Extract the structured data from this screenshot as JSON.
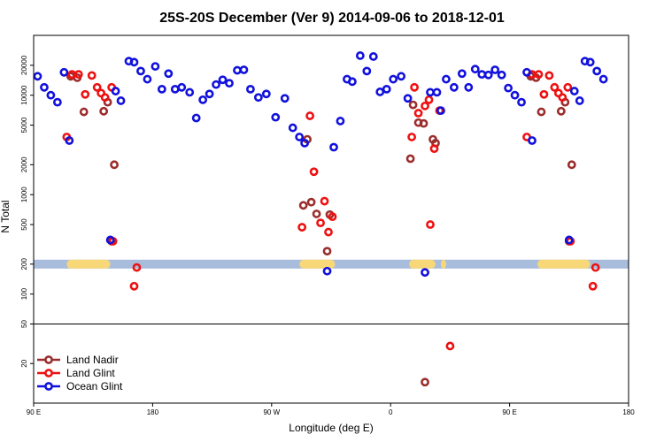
{
  "chart_data": {
    "type": "scatter",
    "title": "25S-20S December (Ver 9)   2014-09-06 to 2018-12-01",
    "xlabel": "Longitude (deg E)",
    "ylabel": "N Total",
    "x_ticks": [
      {
        "value": 90,
        "label": "90 E"
      },
      {
        "value": 180,
        "label": "180"
      },
      {
        "value": 270,
        "label": "90 W"
      },
      {
        "value": 360,
        "label": "0"
      },
      {
        "value": 450,
        "label": "90 E"
      },
      {
        "value": 540,
        "label": "180"
      }
    ],
    "xlim": [
      90,
      540
    ],
    "y_scale": "log",
    "ylim": [
      8,
      40000
    ],
    "y_ticks": [
      20,
      50,
      100,
      200,
      500,
      1000,
      2000,
      5000,
      10000,
      20000
    ],
    "threshold_line": 50,
    "colors": {
      "land_nadir": "#9b2d2d",
      "land_glint": "#ee1111",
      "ocean_glint": "#1111dd",
      "ocean_band": "#a8bcdc",
      "land_band": "#f7d778"
    },
    "surface_band": {
      "y": 200,
      "land_segments": [
        [
          115,
          148
        ],
        [
          291,
          318
        ],
        [
          374,
          394
        ],
        [
          398,
          402
        ],
        [
          471,
          511
        ]
      ]
    },
    "series": [
      {
        "name": "Land Nadir",
        "color_key": "land_nadir",
        "points": [
          [
            118,
            15500
          ],
          [
            123,
            15000
          ],
          [
            128,
            6800
          ],
          [
            143,
            6900
          ],
          [
            146,
            8500
          ],
          [
            151,
            2000
          ],
          [
            149,
            340
          ],
          [
            294,
            780
          ],
          [
            297,
            3600
          ],
          [
            300,
            840
          ],
          [
            304,
            640
          ],
          [
            312,
            270
          ],
          [
            314,
            630
          ],
          [
            375,
            2300
          ],
          [
            377,
            8000
          ],
          [
            381,
            5300
          ],
          [
            385,
            5200
          ],
          [
            392,
            3600
          ],
          [
            394,
            3300
          ],
          [
            466,
            15500
          ],
          [
            470,
            15000
          ],
          [
            474,
            6800
          ],
          [
            489,
            6900
          ],
          [
            492,
            8500
          ],
          [
            497,
            2000
          ],
          [
            495,
            340
          ],
          [
            386,
            13
          ]
        ]
      },
      {
        "name": "Land Glint",
        "color_key": "land_glint",
        "points": [
          [
            115,
            3800
          ],
          [
            119,
            16200
          ],
          [
            124,
            16200
          ],
          [
            129,
            10200
          ],
          [
            134,
            15800
          ],
          [
            138,
            12000
          ],
          [
            141,
            10500
          ],
          [
            144,
            9500
          ],
          [
            149,
            12000
          ],
          [
            150,
            340
          ],
          [
            166,
            120
          ],
          [
            168,
            185
          ],
          [
            293,
            470
          ],
          [
            299,
            6200
          ],
          [
            302,
            1700
          ],
          [
            307,
            520
          ],
          [
            310,
            860
          ],
          [
            313,
            420
          ],
          [
            316,
            600
          ],
          [
            376,
            3800
          ],
          [
            378,
            12000
          ],
          [
            381,
            6600
          ],
          [
            386,
            7800
          ],
          [
            389,
            9000
          ],
          [
            390,
            500
          ],
          [
            393,
            2900
          ],
          [
            397,
            7000
          ],
          [
            463,
            3800
          ],
          [
            467,
            16200
          ],
          [
            472,
            16200
          ],
          [
            476,
            10200
          ],
          [
            480,
            15800
          ],
          [
            484,
            12000
          ],
          [
            487,
            10500
          ],
          [
            490,
            9500
          ],
          [
            494,
            12000
          ],
          [
            496,
            340
          ],
          [
            513,
            120
          ],
          [
            515,
            185
          ],
          [
            405,
            30
          ]
        ]
      },
      {
        "name": "Ocean Glint",
        "color_key": "ocean_glint",
        "points": [
          [
            93,
            15500
          ],
          [
            98,
            12000
          ],
          [
            103,
            10000
          ],
          [
            108,
            8500
          ],
          [
            113,
            17000
          ],
          [
            117,
            3500
          ],
          [
            148,
            350
          ],
          [
            152,
            11000
          ],
          [
            156,
            8800
          ],
          [
            162,
            22000
          ],
          [
            166,
            21500
          ],
          [
            171,
            17500
          ],
          [
            176,
            14500
          ],
          [
            182,
            19500
          ],
          [
            187,
            11500
          ],
          [
            192,
            16500
          ],
          [
            197,
            11500
          ],
          [
            202,
            12000
          ],
          [
            208,
            10700
          ],
          [
            213,
            5900
          ],
          [
            218,
            9000
          ],
          [
            223,
            10300
          ],
          [
            228,
            12800
          ],
          [
            233,
            14300
          ],
          [
            238,
            13200
          ],
          [
            244,
            17800
          ],
          [
            249,
            18000
          ],
          [
            254,
            11500
          ],
          [
            260,
            9500
          ],
          [
            266,
            10300
          ],
          [
            273,
            6000
          ],
          [
            280,
            9300
          ],
          [
            286,
            4700
          ],
          [
            291,
            3800
          ],
          [
            295,
            3300
          ],
          [
            312,
            170
          ],
          [
            317,
            3000
          ],
          [
            322,
            5500
          ],
          [
            327,
            14500
          ],
          [
            331,
            13700
          ],
          [
            337,
            25000
          ],
          [
            342,
            17500
          ],
          [
            347,
            24500
          ],
          [
            352,
            10800
          ],
          [
            357,
            11500
          ],
          [
            362,
            14500
          ],
          [
            368,
            15500
          ],
          [
            373,
            9300
          ],
          [
            386,
            165
          ],
          [
            390,
            10700
          ],
          [
            395,
            10700
          ],
          [
            398,
            7000
          ],
          [
            402,
            14500
          ],
          [
            408,
            12000
          ],
          [
            414,
            16500
          ],
          [
            419,
            12000
          ],
          [
            424,
            18300
          ],
          [
            429,
            16200
          ],
          [
            434,
            16000
          ],
          [
            439,
            18000
          ],
          [
            444,
            16000
          ],
          [
            449,
            11800
          ],
          [
            454,
            10000
          ],
          [
            459,
            8500
          ],
          [
            463,
            17000
          ],
          [
            467,
            3500
          ],
          [
            495,
            350
          ],
          [
            499,
            11000
          ],
          [
            503,
            8800
          ],
          [
            507,
            22000
          ],
          [
            511,
            21500
          ],
          [
            516,
            17500
          ],
          [
            521,
            14500
          ]
        ]
      }
    ],
    "legend": {
      "position": "bottom-left",
      "entries": [
        "Land Nadir",
        "Land Glint",
        "Ocean Glint"
      ]
    }
  }
}
